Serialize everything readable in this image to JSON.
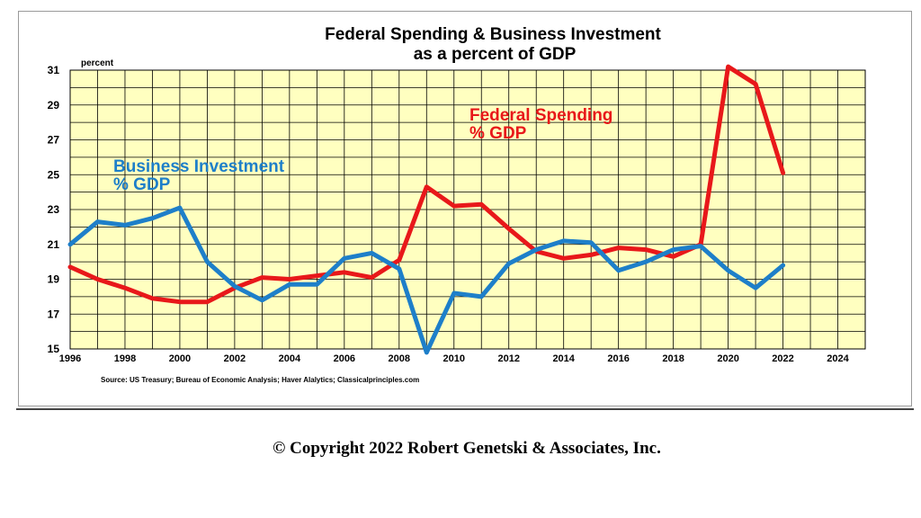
{
  "chart_data": {
    "type": "line",
    "title": "Federal Spending & Business Investment",
    "subtitle": "as a percent of GDP",
    "ylabel": "percent",
    "ylim": [
      15,
      31
    ],
    "yticks": [
      15,
      17,
      19,
      21,
      23,
      25,
      27,
      29,
      31
    ],
    "xlim": [
      1996,
      2025
    ],
    "xticks": [
      1996,
      1998,
      2000,
      2002,
      2004,
      2006,
      2008,
      2010,
      2012,
      2014,
      2016,
      2018,
      2020,
      2022,
      2024
    ],
    "grid": true,
    "background": "#FFFFC0",
    "series": [
      {
        "name": "Federal Spending % GDP",
        "label_lines": [
          "Federal Spending",
          " % GDP"
        ],
        "color": "#E8181A",
        "x": [
          1996,
          1997,
          1998,
          1999,
          2000,
          2001,
          2002,
          2003,
          2004,
          2005,
          2006,
          2007,
          2008,
          2009,
          2010,
          2011,
          2012,
          2013,
          2014,
          2015,
          2016,
          2017,
          2018,
          2019,
          2020,
          2021,
          2022
        ],
        "values": [
          19.7,
          19.0,
          18.5,
          17.9,
          17.7,
          17.7,
          18.5,
          19.1,
          19.0,
          19.2,
          19.4,
          19.1,
          20.1,
          24.3,
          23.2,
          23.3,
          21.9,
          20.6,
          20.2,
          20.4,
          20.8,
          20.7,
          20.3,
          21.0,
          31.2,
          30.2,
          25.1
        ]
      },
      {
        "name": "Business Investment % GDP",
        "label_lines": [
          "Business Investment",
          "% GDP"
        ],
        "color": "#1E7FC9",
        "x": [
          1996,
          1997,
          1998,
          1999,
          2000,
          2001,
          2002,
          2003,
          2004,
          2005,
          2006,
          2007,
          2008,
          2009,
          2010,
          2011,
          2012,
          2013,
          2014,
          2015,
          2016,
          2017,
          2018,
          2019,
          2020,
          2021,
          2022
        ],
        "values": [
          21.0,
          22.3,
          22.1,
          22.5,
          23.1,
          20.0,
          18.6,
          17.8,
          18.7,
          18.7,
          20.2,
          20.5,
          19.6,
          14.8,
          18.2,
          18.0,
          19.9,
          20.7,
          21.2,
          21.1,
          19.5,
          20.0,
          20.7,
          20.9,
          19.5,
          18.5,
          19.8
        ]
      }
    ],
    "source": "Source: US Treasury; Bureau of Economic Analysis; Haver Alalytics; Classicalprinciples.com"
  },
  "footer": {
    "copyright": "© Copyright 2022 Robert Genetski & Associates, Inc."
  }
}
